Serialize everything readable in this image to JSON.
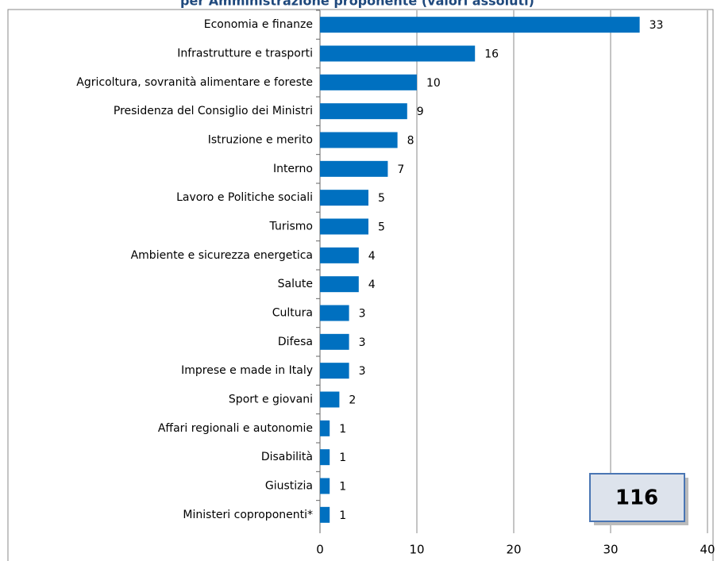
{
  "chart_data": {
    "type": "bar",
    "orientation": "horizontal",
    "title": "per Amministrazione proponente (valori assoluti)",
    "categories": [
      "Economia e finanze",
      "Infrastrutture e trasporti",
      "Agricoltura, sovranità alimentare e foreste",
      "Presidenza del Consiglio dei Ministri",
      "Istruzione e merito",
      "Interno",
      "Lavoro e Politiche sociali",
      "Turismo",
      "Ambiente e sicurezza energetica",
      "Salute",
      "Cultura",
      "Difesa",
      "Imprese e made in Italy",
      "Sport e giovani",
      "Affari regionali e autonomie",
      "Disabilità",
      "Giustizia",
      "Ministeri coproponenti*"
    ],
    "values": [
      33,
      16,
      10,
      9,
      8,
      7,
      5,
      5,
      4,
      4,
      3,
      3,
      3,
      2,
      1,
      1,
      1,
      1
    ],
    "color": "#0070c0",
    "xlim": [
      0,
      40
    ],
    "xticks": [
      0,
      10,
      20,
      30,
      40
    ],
    "grid": true,
    "annotation": "116"
  }
}
